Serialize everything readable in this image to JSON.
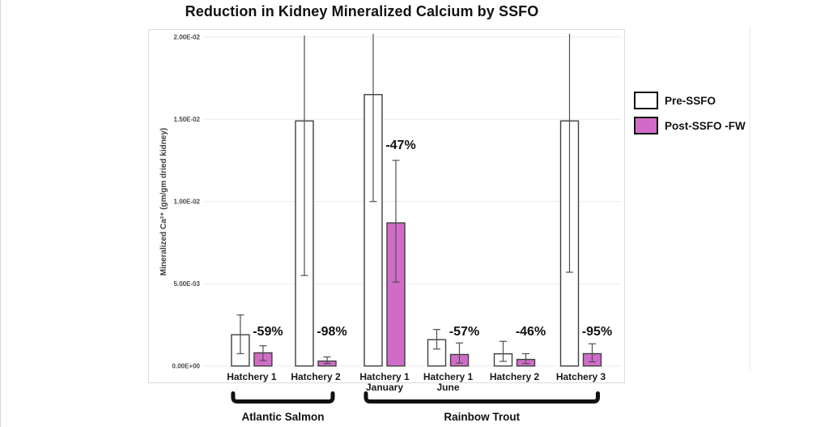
{
  "chart_data": {
    "type": "bar",
    "title": "Reduction in Kidney Mineralized Calcium by SSFO",
    "ylabel": "Mineralized Ca²⁺ (gm/gm dried kidney)",
    "xlabel": "",
    "ylim": [
      0,
      0.02
    ],
    "ytick_labels": [
      "0.00E+00",
      "5.00E-03",
      "1.00E-02",
      "1.50E-02",
      "2.00E-02"
    ],
    "ytick_values": [
      0,
      0.005,
      0.01,
      0.015,
      0.02
    ],
    "grid": "horizontal",
    "legend_position": "right",
    "legend": [
      {
        "name": "Pre-SSFO",
        "color": "#ffffff"
      },
      {
        "name": "Post-SSFO -FW",
        "color": "#d06cc8"
      }
    ],
    "bar_outline_color": "#3f3f3f",
    "error_bar_color": "#4f4f4f",
    "groups": [
      {
        "label": "Hatchery 1",
        "sublabel": "",
        "pct_change": "-59%",
        "pre": {
          "value": 0.0019,
          "err_lo": 0.00075,
          "err_hi": 0.0031
        },
        "post": {
          "value": 0.0008,
          "err_lo": 0.00033,
          "err_hi": 0.00123
        }
      },
      {
        "label": "Hatchery 2",
        "sublabel": "",
        "pct_change": "-98%",
        "pre": {
          "value": 0.0149,
          "err_lo": 0.0055,
          "err_hi": 0.0201
        },
        "post": {
          "value": 0.0003,
          "err_lo": 0.00015,
          "err_hi": 0.00055
        }
      },
      {
        "label": "Hatchery 1",
        "sublabel": "January",
        "pct_change": "-47%",
        "pre": {
          "value": 0.0165,
          "err_lo": 0.01,
          "err_hi": 0.0202
        },
        "post": {
          "value": 0.0087,
          "err_lo": 0.0051,
          "err_hi": 0.0125
        }
      },
      {
        "label": "Hatchery 1",
        "sublabel": "June",
        "pct_change": "-57%",
        "pre": {
          "value": 0.0016,
          "err_lo": 0.00103,
          "err_hi": 0.00222
        },
        "post": {
          "value": 0.0007,
          "err_lo": 0.00018,
          "err_hi": 0.0014
        }
      },
      {
        "label": "Hatchery 2",
        "sublabel": "",
        "pct_change": "-46%",
        "pre": {
          "value": 0.00074,
          "err_lo": 0.00028,
          "err_hi": 0.0015
        },
        "post": {
          "value": 0.0004,
          "err_lo": 0.00015,
          "err_hi": 0.00075
        }
      },
      {
        "label": "Hatchery 3",
        "sublabel": "",
        "pct_change": "-95%",
        "pre": {
          "value": 0.0149,
          "err_lo": 0.0057,
          "err_hi": 0.0202
        },
        "post": {
          "value": 0.00075,
          "err_lo": 0.00025,
          "err_hi": 0.00135
        }
      }
    ],
    "species_brackets": [
      {
        "label": "Atlantic Salmon",
        "from_group": 0,
        "to_group": 1
      },
      {
        "label": "Rainbow Trout",
        "from_group": 2,
        "to_group": 5
      }
    ]
  }
}
